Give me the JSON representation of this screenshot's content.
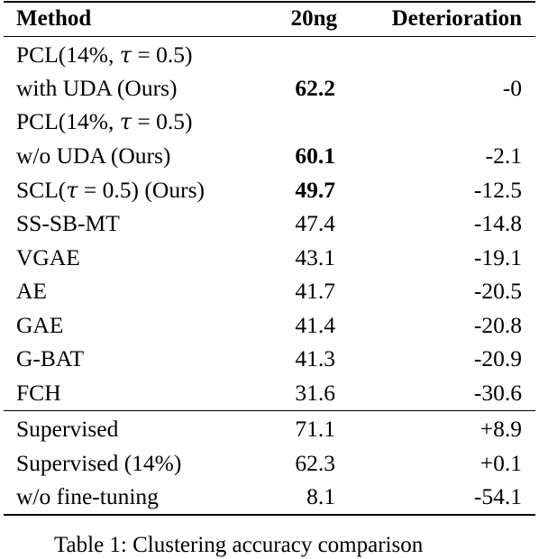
{
  "table": {
    "headers": {
      "method": "Method",
      "dataset": "20ng",
      "deterioration": "Deterioration"
    },
    "rows": [
      {
        "method": "PCL(14%, τ = 0.5)",
        "score": "",
        "deterioration": "",
        "bold": false
      },
      {
        "method": "with UDA (Ours)",
        "score": "62.2",
        "deterioration": "-0",
        "bold": true
      },
      {
        "method": "PCL(14%, τ = 0.5)",
        "score": "",
        "deterioration": "",
        "bold": false
      },
      {
        "method": "w/o UDA (Ours)",
        "score": "60.1",
        "deterioration": "-2.1",
        "bold": true
      },
      {
        "method": "SCL(τ = 0.5) (Ours)",
        "score": "49.7",
        "deterioration": "-12.5",
        "bold": true
      },
      {
        "method": "SS-SB-MT",
        "score": "47.4",
        "deterioration": "-14.8",
        "bold": false
      },
      {
        "method": "VGAE",
        "score": "43.1",
        "deterioration": "-19.1",
        "bold": false
      },
      {
        "method": "AE",
        "score": "41.7",
        "deterioration": "-20.5",
        "bold": false
      },
      {
        "method": "GAE",
        "score": "41.4",
        "deterioration": "-20.8",
        "bold": false
      },
      {
        "method": "G-BAT",
        "score": "41.3",
        "deterioration": "-20.9",
        "bold": false
      },
      {
        "method": "FCH",
        "score": "31.6",
        "deterioration": "-30.6",
        "bold": false
      }
    ],
    "rows_bottom": [
      {
        "method": "Supervised",
        "score": "71.1",
        "deterioration": "+8.9",
        "bold": false
      },
      {
        "method": "Supervised (14%)",
        "score": "62.3",
        "deterioration": "+0.1",
        "bold": false
      },
      {
        "method": "w/o fine-tuning",
        "score": "8.1",
        "deterioration": "-54.1",
        "bold": false
      }
    ]
  },
  "caption": "Table 1: Clustering accuracy comparison"
}
